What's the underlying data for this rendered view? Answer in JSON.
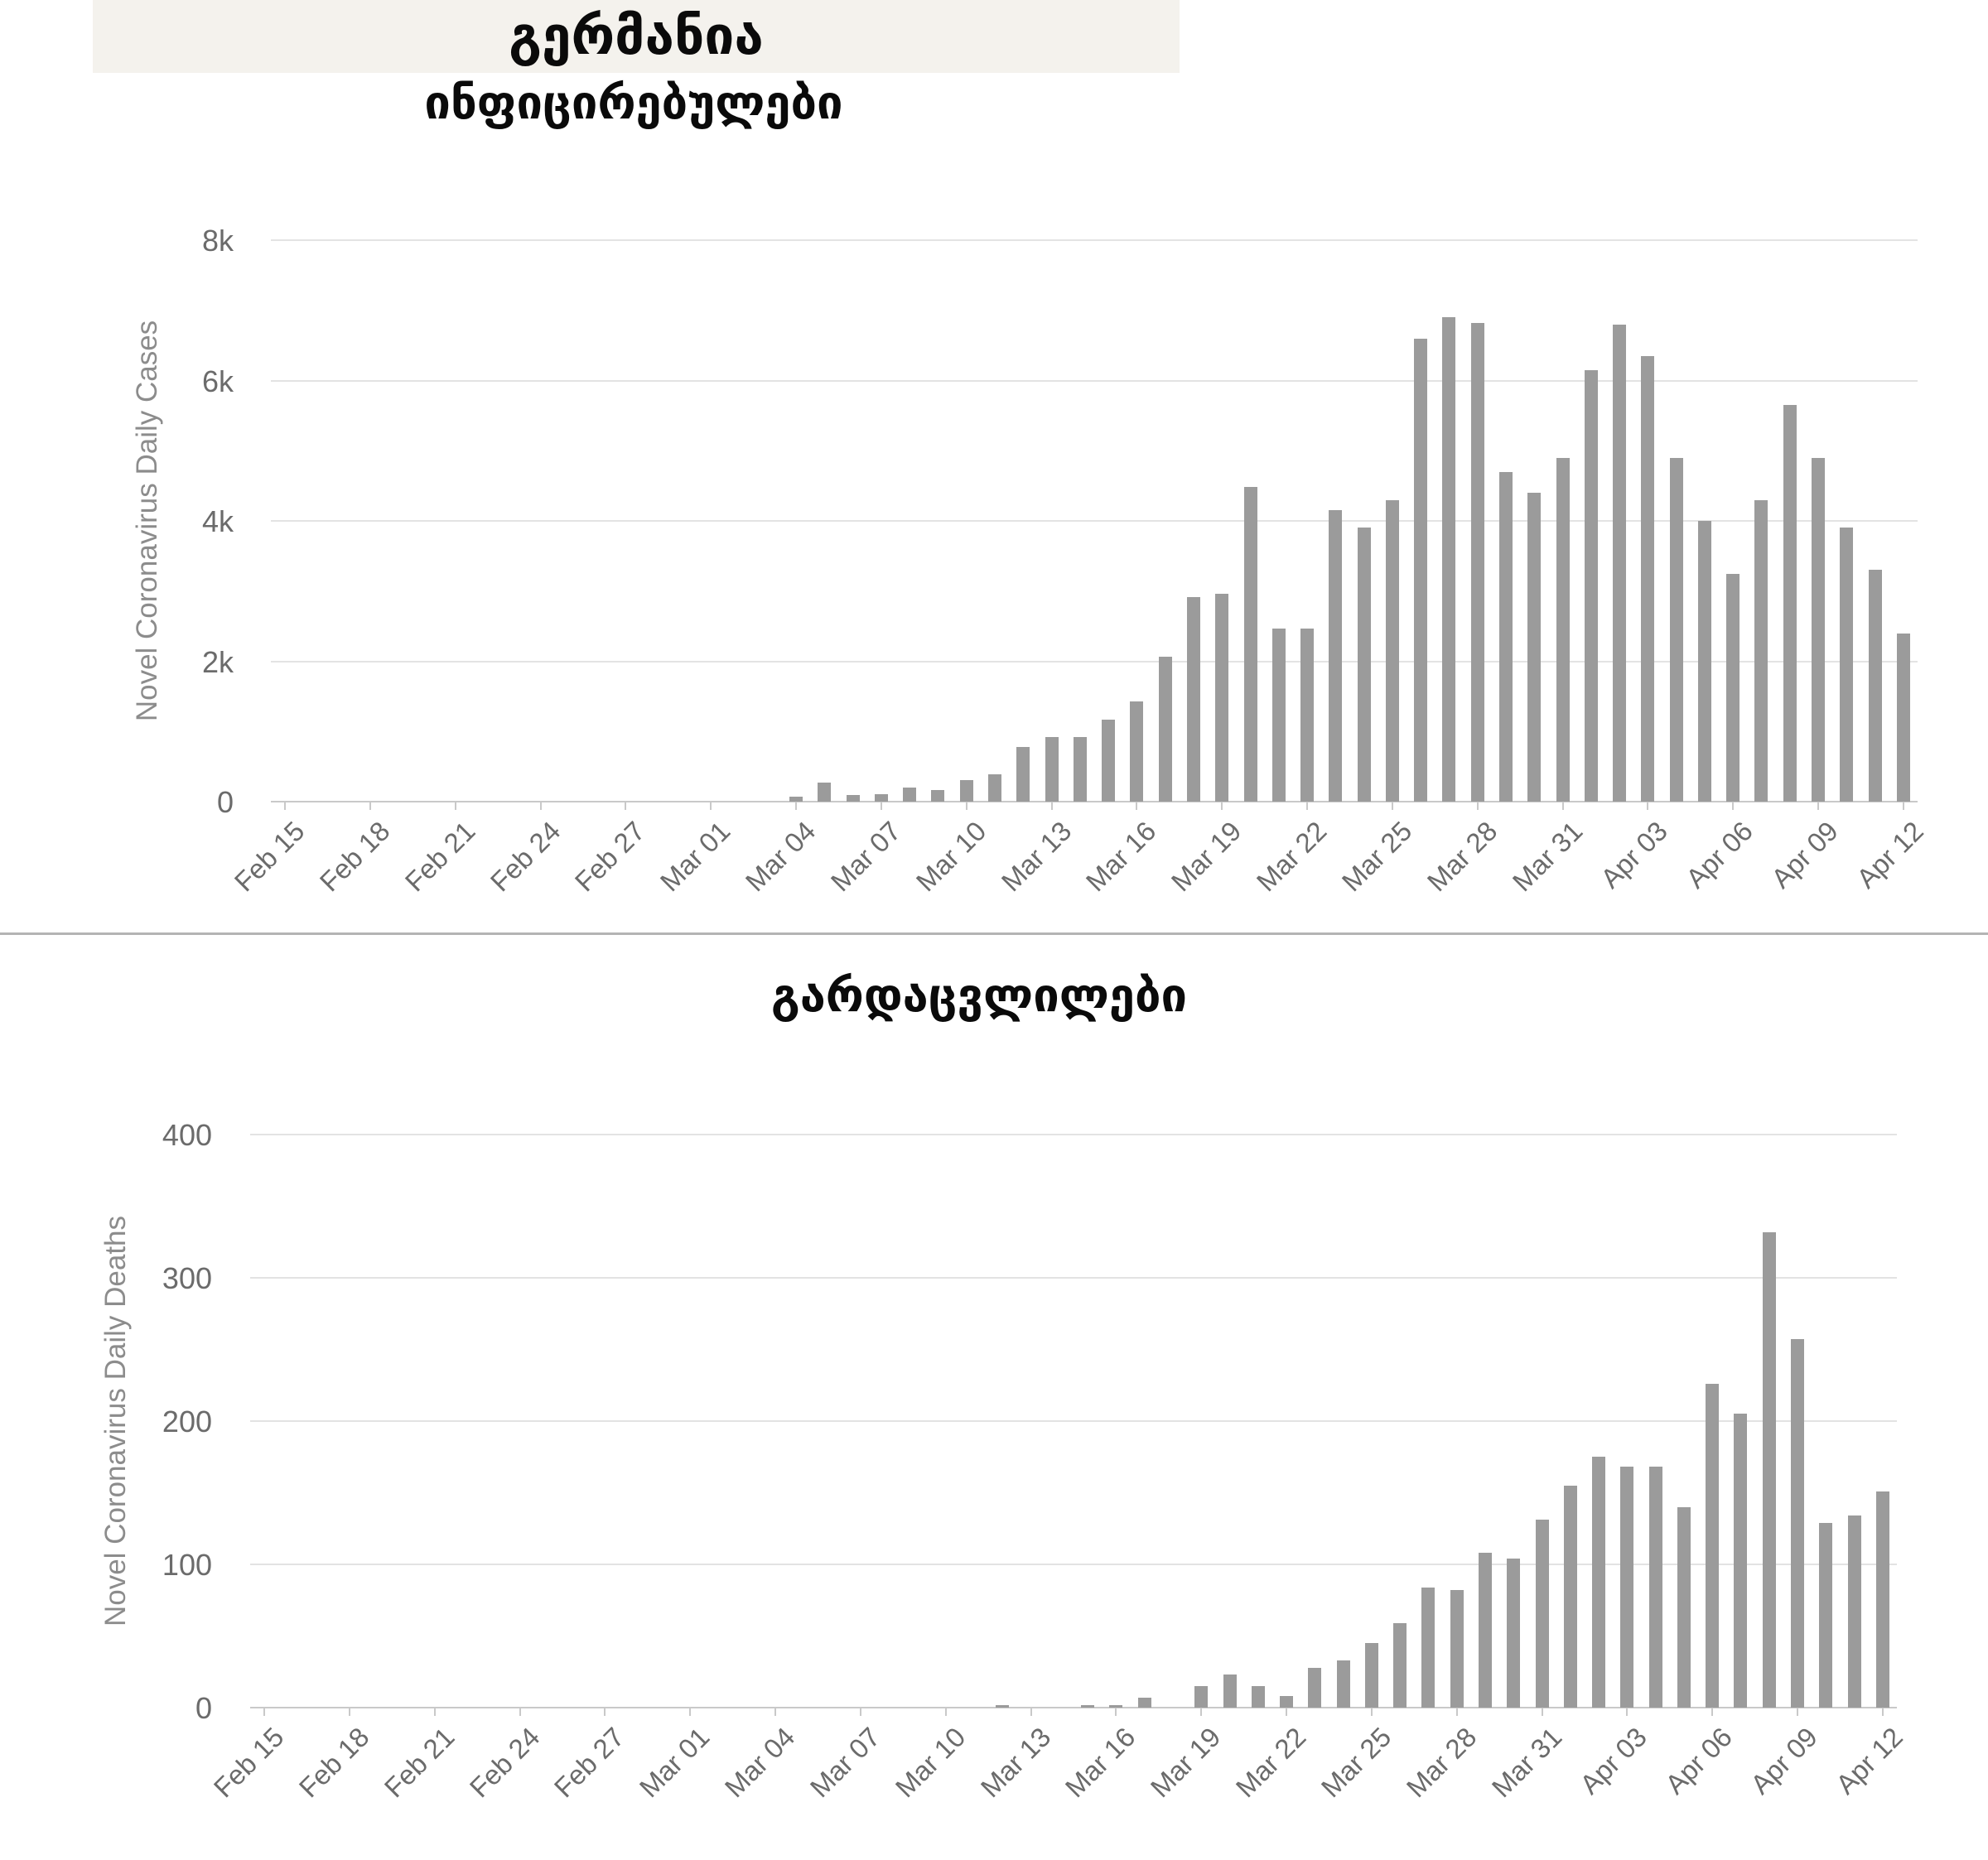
{
  "page": {
    "title": "გერმანია",
    "title_strip_bg": "#f4f2ed",
    "divider_color": "#b4b4b4",
    "background": "#ffffff"
  },
  "chart_data": [
    {
      "type": "bar",
      "title": "ინფიცირებულები",
      "xlabel": "",
      "ylabel": "Novel Coronavirus Daily Cases",
      "ylim": [
        0,
        8000
      ],
      "y_tick_labels": [
        "0",
        "2k",
        "4k",
        "6k",
        "8k"
      ],
      "x_tick_every": 3,
      "grid": true,
      "legend": "none",
      "bar_color": "#9b9b9b",
      "categories": [
        "Feb 15",
        "Feb 16",
        "Feb 17",
        "Feb 18",
        "Feb 19",
        "Feb 20",
        "Feb 21",
        "Feb 22",
        "Feb 23",
        "Feb 24",
        "Feb 25",
        "Feb 26",
        "Feb 27",
        "Feb 28",
        "Feb 29",
        "Mar 01",
        "Mar 02",
        "Mar 03",
        "Mar 04",
        "Mar 05",
        "Mar 06",
        "Mar 07",
        "Mar 08",
        "Mar 09",
        "Mar 10",
        "Mar 11",
        "Mar 12",
        "Mar 13",
        "Mar 14",
        "Mar 15",
        "Mar 16",
        "Mar 17",
        "Mar 18",
        "Mar 19",
        "Mar 20",
        "Mar 21",
        "Mar 22",
        "Mar 23",
        "Mar 24",
        "Mar 25",
        "Mar 26",
        "Mar 27",
        "Mar 28",
        "Mar 29",
        "Mar 30",
        "Mar 31",
        "Apr 01",
        "Apr 02",
        "Apr 03",
        "Apr 04",
        "Apr 05",
        "Apr 06",
        "Apr 07",
        "Apr 08",
        "Apr 09",
        "Apr 10",
        "Apr 11",
        "Apr 12"
      ],
      "values": [
        0,
        0,
        0,
        0,
        0,
        0,
        0,
        0,
        0,
        0,
        0,
        0,
        0,
        0,
        0,
        0,
        0,
        0,
        70,
        270,
        100,
        110,
        200,
        160,
        310,
        390,
        780,
        920,
        920,
        1170,
        1430,
        2060,
        2910,
        2960,
        4480,
        2470,
        2470,
        4150,
        3900,
        4300,
        6600,
        6900,
        6820,
        4700,
        4400,
        4900,
        6150,
        6800,
        6350,
        4900,
        4000,
        3250,
        4300,
        5650,
        4900,
        3900,
        3300,
        2400
      ]
    },
    {
      "type": "bar",
      "title": "გარდაცვლილები",
      "xlabel": "",
      "ylabel": "Novel Coronavirus Daily Deaths",
      "ylim": [
        0,
        400
      ],
      "y_tick_labels": [
        "0",
        "100",
        "200",
        "300",
        "400"
      ],
      "x_tick_every": 3,
      "grid": true,
      "legend": "none",
      "bar_color": "#9b9b9b",
      "categories": [
        "Feb 15",
        "Feb 16",
        "Feb 17",
        "Feb 18",
        "Feb 19",
        "Feb 20",
        "Feb 21",
        "Feb 22",
        "Feb 23",
        "Feb 24",
        "Feb 25",
        "Feb 26",
        "Feb 27",
        "Feb 28",
        "Feb 29",
        "Mar 01",
        "Mar 02",
        "Mar 03",
        "Mar 04",
        "Mar 05",
        "Mar 06",
        "Mar 07",
        "Mar 08",
        "Mar 09",
        "Mar 10",
        "Mar 11",
        "Mar 12",
        "Mar 13",
        "Mar 14",
        "Mar 15",
        "Mar 16",
        "Mar 17",
        "Mar 18",
        "Mar 19",
        "Mar 20",
        "Mar 21",
        "Mar 22",
        "Mar 23",
        "Mar 24",
        "Mar 25",
        "Mar 26",
        "Mar 27",
        "Mar 28",
        "Mar 29",
        "Mar 30",
        "Mar 31",
        "Apr 01",
        "Apr 02",
        "Apr 03",
        "Apr 04",
        "Apr 05",
        "Apr 06",
        "Apr 07",
        "Apr 08",
        "Apr 09",
        "Apr 10",
        "Apr 11",
        "Apr 12"
      ],
      "values": [
        0,
        0,
        0,
        0,
        0,
        0,
        0,
        0,
        0,
        0,
        0,
        0,
        0,
        0,
        0,
        0,
        0,
        0,
        0,
        0,
        0,
        0,
        0,
        0,
        0,
        0,
        2,
        0,
        0,
        2,
        2,
        7,
        0,
        15,
        23,
        15,
        8,
        28,
        33,
        45,
        59,
        84,
        82,
        108,
        104,
        131,
        155,
        175,
        168,
        168,
        140,
        226,
        205,
        332,
        257,
        129,
        134,
        151
      ]
    }
  ]
}
